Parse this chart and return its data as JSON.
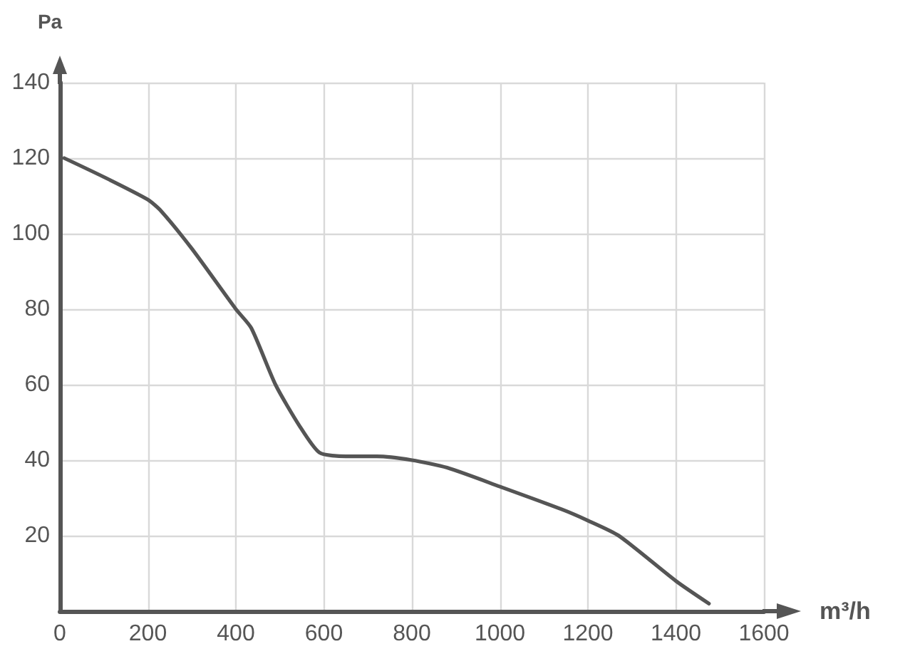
{
  "chart_data": {
    "type": "line",
    "xlabel": "m³/h",
    "ylabel": "Pa",
    "x": [
      10,
      100,
      200,
      230,
      300,
      400,
      435,
      490,
      545,
      590,
      650,
      720,
      800,
      880,
      1000,
      1140,
      1200,
      1270,
      1400,
      1475
    ],
    "values": [
      120,
      115,
      109,
      106,
      96,
      80,
      75,
      60,
      49,
      42,
      41,
      41,
      40,
      38,
      33,
      27,
      24,
      20,
      8,
      2
    ],
    "color": "#555555",
    "marker": "none",
    "line_style": "solid",
    "xlim": [
      0,
      1600
    ],
    "ylim": [
      0,
      140
    ],
    "xticks": [
      0,
      200,
      400,
      600,
      800,
      1000,
      1200,
      1400,
      1600
    ],
    "yticks": [
      20,
      40,
      60,
      80,
      100,
      120,
      140
    ],
    "grid": true
  }
}
